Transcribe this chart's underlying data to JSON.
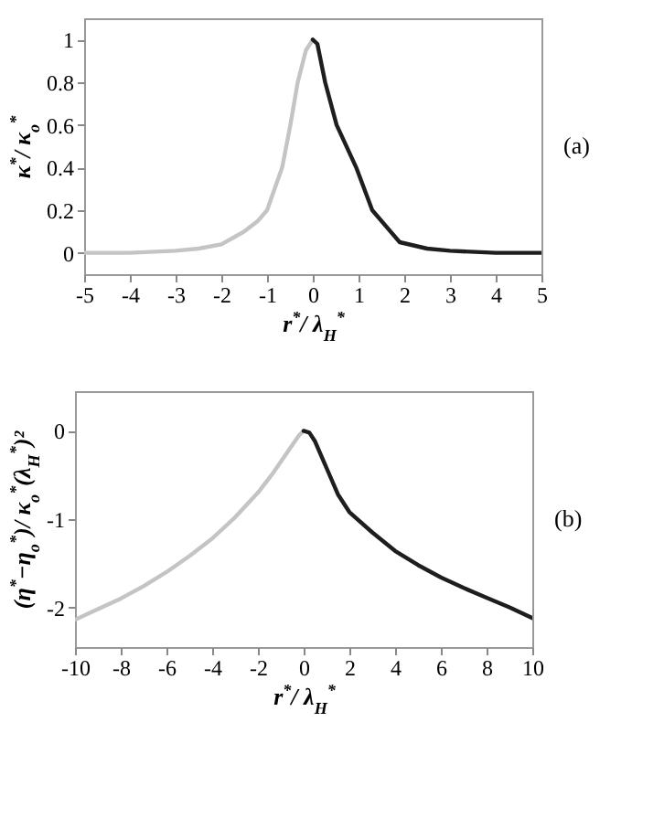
{
  "chart_data": [
    {
      "type": "line",
      "xlabel": "r$^{*}$/ λ$_{H}$$^{*}$",
      "ylabel": "κ$^{*}$/ κ$_{o}$$^{*}$",
      "xlim": [
        -5,
        5
      ],
      "ylim": [
        -0.1,
        1.1
      ],
      "xticks": [
        -5,
        -4,
        -3,
        -2,
        -1,
        0,
        1,
        2,
        3,
        4,
        5
      ],
      "yticks": [
        0,
        0.2,
        0.4,
        0.6,
        0.8,
        1
      ],
      "annotations": [
        "(a)"
      ],
      "series": [
        {
          "color": "#c4c4c4",
          "x": [
            -5,
            -4,
            -3,
            -2.5,
            -2,
            -1.5,
            -1.2,
            -1,
            -0.67,
            -0.49,
            -0.33,
            -0.15,
            0
          ],
          "values": [
            0,
            0,
            0.01,
            0.02,
            0.04,
            0.1,
            0.15,
            0.2,
            0.4,
            0.6,
            0.8,
            0.95,
            1
          ]
        },
        {
          "color": "#1e1e1e",
          "x": [
            0,
            0.1,
            0.27,
            0.52,
            0.95,
            1.3,
            1.9,
            2.5,
            3,
            4,
            5
          ],
          "values": [
            1,
            0.98,
            0.8,
            0.6,
            0.4,
            0.2,
            0.05,
            0.02,
            0.01,
            0,
            0
          ]
        }
      ]
    },
    {
      "type": "line",
      "xlabel": "r$^{*}$/ λ$_{H}$$^{*}$",
      "ylabel": "(η$^{*}$−η$_{o}$$^{*}$)/ κ$_{o}$$^{*}$(λ$_{H}$$^{*}$)²",
      "xlim": [
        -10,
        10
      ],
      "ylim": [
        -2.45,
        0.45
      ],
      "xticks": [
        -10,
        -8,
        -6,
        -4,
        -2,
        0,
        2,
        4,
        6,
        8,
        10
      ],
      "yticks": [
        -2,
        -1,
        0
      ],
      "annotations": [
        "(b)"
      ],
      "series": [
        {
          "color": "#c4c4c4",
          "x": [
            -10,
            -9,
            -8,
            -7,
            -6,
            -5,
            -4,
            -3,
            -2,
            -1.4,
            -1,
            -0.6,
            -0.2,
            0
          ],
          "values": [
            -2.14,
            -2.02,
            -1.9,
            -1.76,
            -1.6,
            -1.42,
            -1.22,
            -0.98,
            -0.7,
            -0.5,
            -0.35,
            -0.2,
            -0.05,
            0
          ]
        },
        {
          "color": "#1e1e1e",
          "x": [
            0,
            0.25,
            0.5,
            1,
            1.5,
            2,
            3,
            4,
            5,
            6,
            7,
            8,
            9,
            10
          ],
          "values": [
            0,
            -0.02,
            -0.12,
            -0.42,
            -0.72,
            -0.92,
            -1.15,
            -1.36,
            -1.52,
            -1.66,
            -1.78,
            -1.89,
            -2.0,
            -2.12
          ]
        }
      ]
    }
  ]
}
